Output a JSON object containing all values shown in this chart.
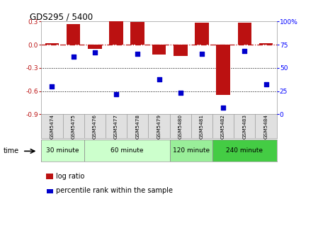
{
  "title": "GDS295 / 5400",
  "samples": [
    "GSM5474",
    "GSM5475",
    "GSM5476",
    "GSM5477",
    "GSM5478",
    "GSM5479",
    "GSM5480",
    "GSM5481",
    "GSM5482",
    "GSM5483",
    "GSM5484"
  ],
  "log_ratios": [
    0.02,
    0.27,
    -0.05,
    0.3,
    0.29,
    -0.13,
    -0.15,
    0.28,
    -0.65,
    0.28,
    0.02
  ],
  "percentile_ranks": [
    30,
    62,
    67,
    22,
    65,
    38,
    23,
    65,
    7,
    68,
    32
  ],
  "bar_color": "#bb1111",
  "scatter_color": "#0000cc",
  "left_ylim": [
    -0.9,
    0.3
  ],
  "right_ylim": [
    0,
    100
  ],
  "left_yticks": [
    0.3,
    0.0,
    -0.3,
    -0.6,
    -0.9
  ],
  "right_yticks": [
    100,
    75,
    50,
    25,
    0
  ],
  "dotted_yticks": [
    -0.3,
    -0.6
  ],
  "time_groups": [
    {
      "label": "30 minute",
      "start": 0,
      "end": 1,
      "color": "#ccffcc"
    },
    {
      "label": "60 minute",
      "start": 2,
      "end": 5,
      "color": "#ccffcc"
    },
    {
      "label": "120 minute",
      "start": 6,
      "end": 7,
      "color": "#99ee99"
    },
    {
      "label": "240 minute",
      "start": 8,
      "end": 10,
      "color": "#44cc44"
    }
  ],
  "time_label": "time",
  "legend_log_ratio": "log ratio",
  "legend_percentile": "percentile rank within the sample",
  "background_color": "#ffffff"
}
